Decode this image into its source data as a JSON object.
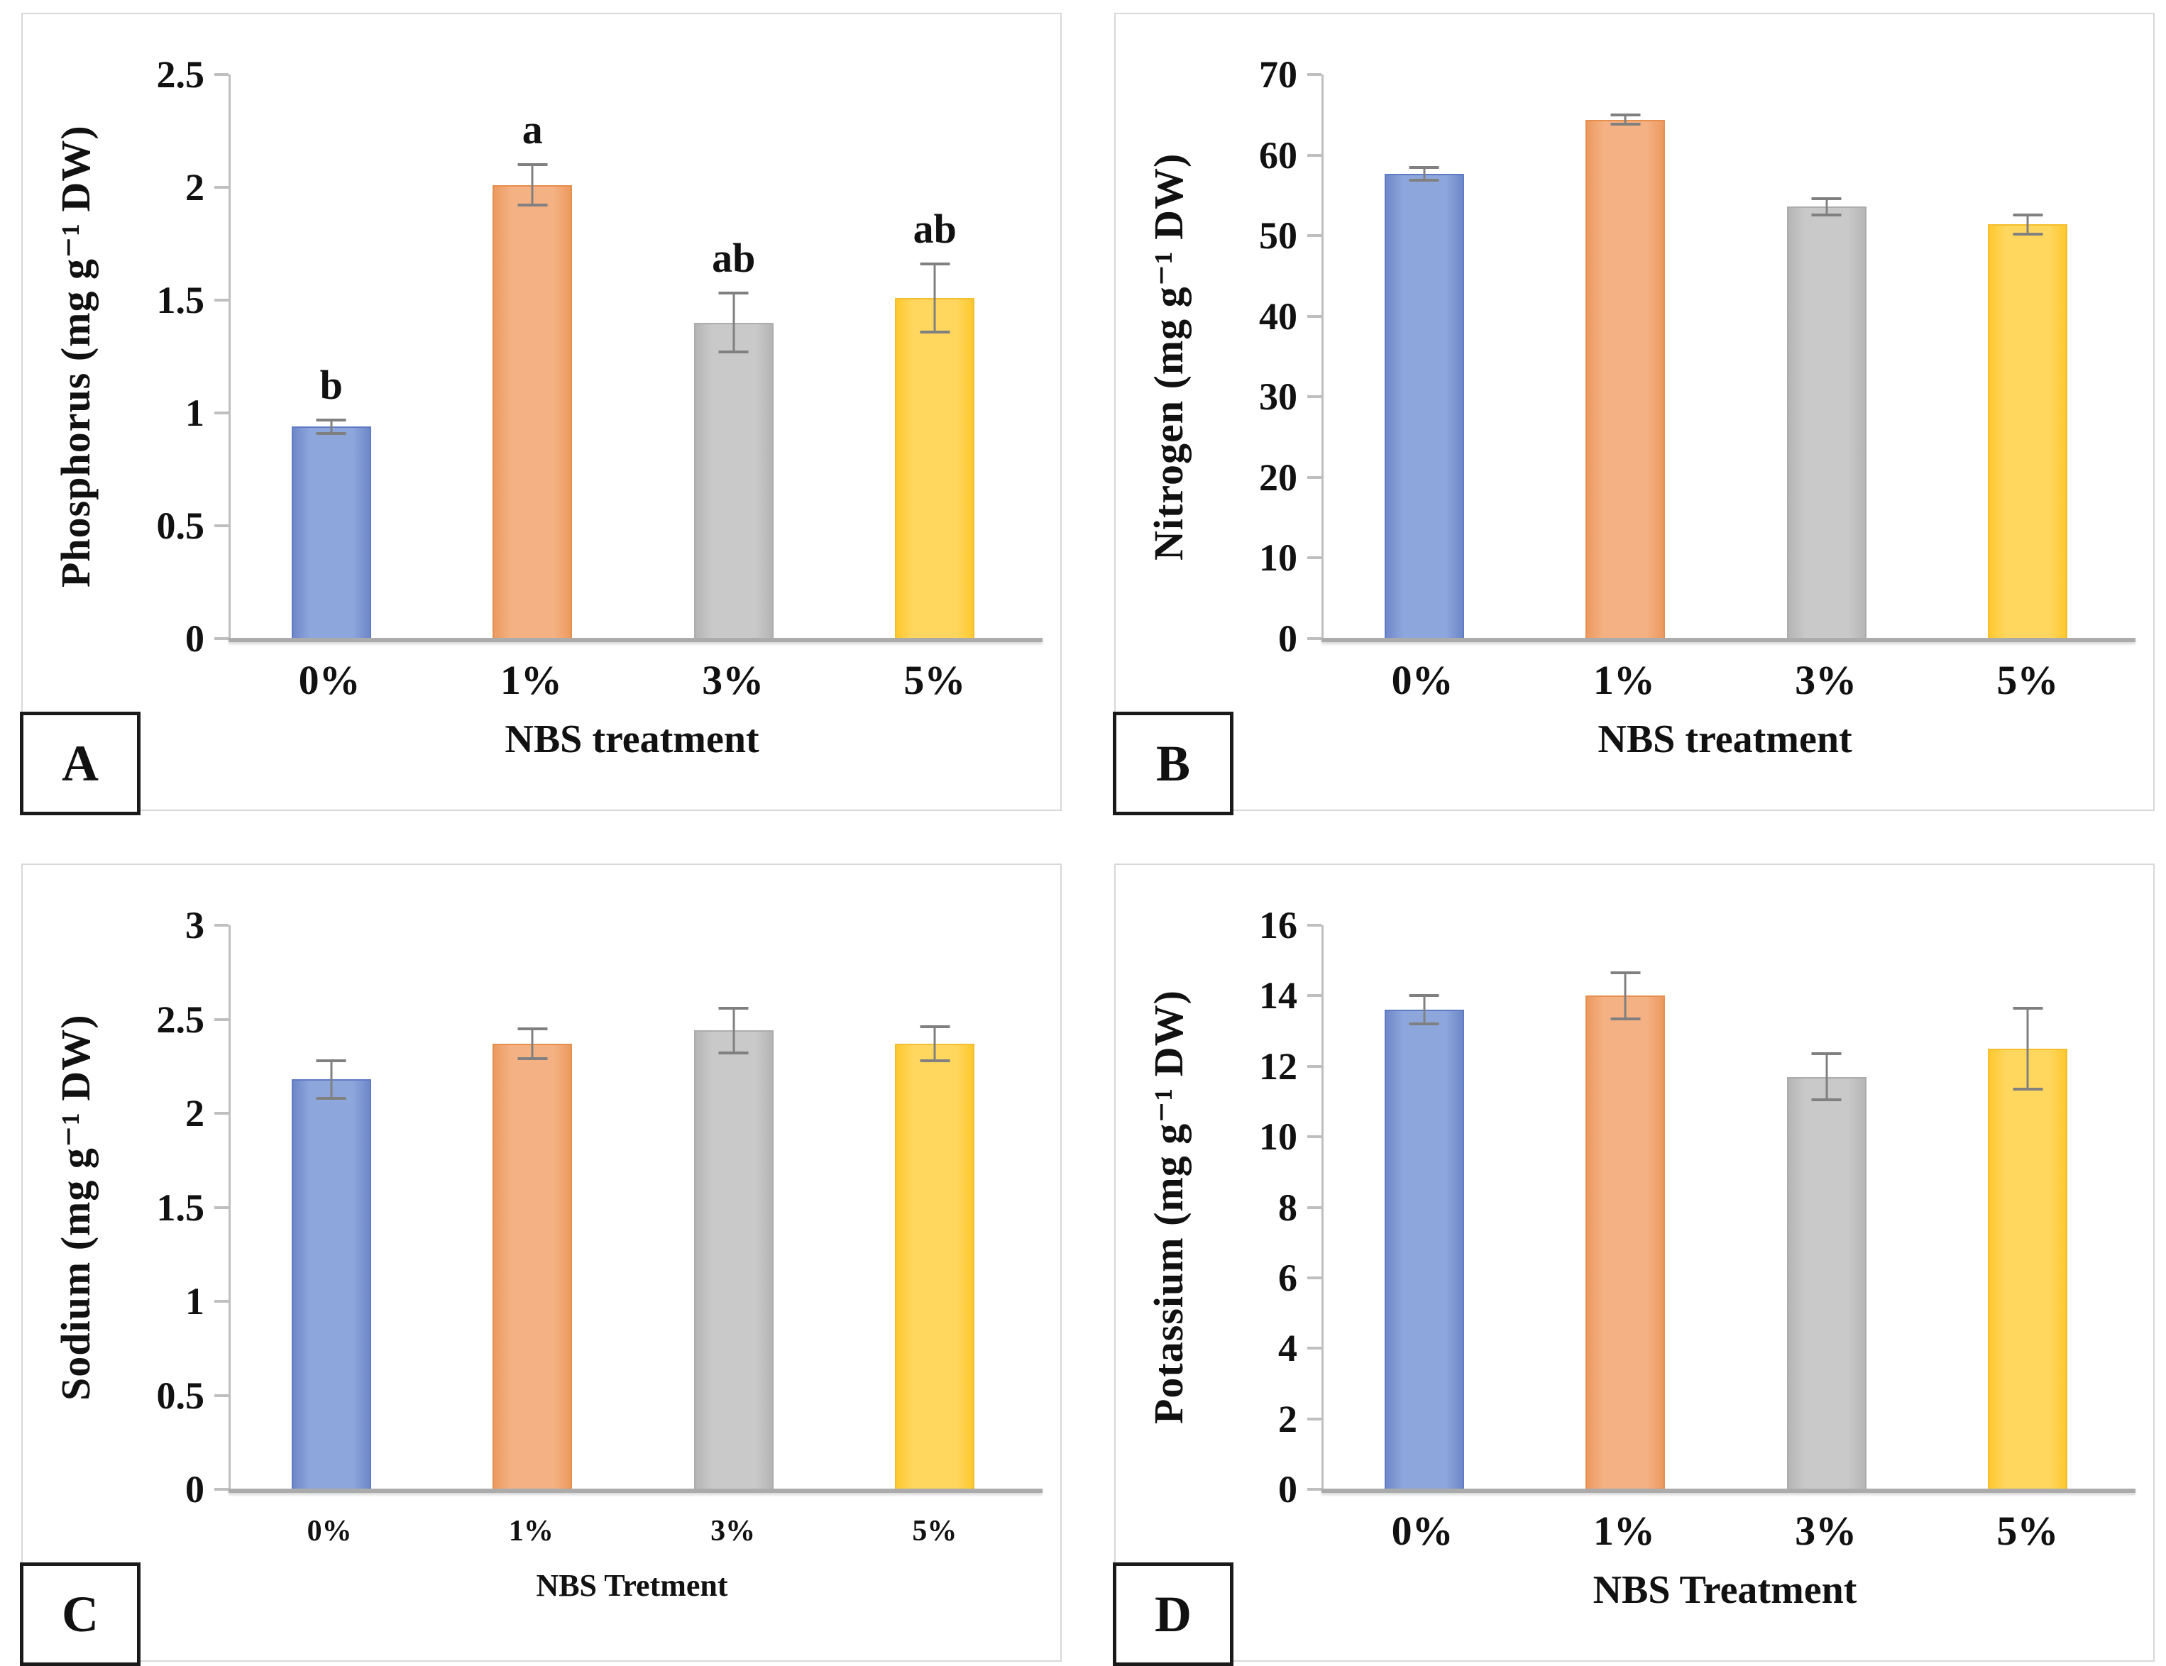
{
  "colors": {
    "bar_fill": [
      "#8DA6DC",
      "#F4B183",
      "#C9C9C9",
      "#FFD75E"
    ],
    "bar_edge": [
      "#6E88C9",
      "#EC9A5F",
      "#B5B5B5",
      "#FEC82F"
    ],
    "bar_border": [
      "#5E7BC4",
      "#E58E4D",
      "#ACACAC",
      "#F5BE2E"
    ],
    "error_bar": "#808080",
    "axis_line": "#BFBFBF",
    "baseline": "#ABABAB",
    "text": "#111111",
    "panel_border": "#D8D8D8",
    "label_box_border": "#1A1A1A"
  },
  "chart_data": [
    {
      "type": "bar",
      "panel_label": "A",
      "title": "",
      "xlabel": "NBS treatment",
      "ylabel": "Phosphorus (mg g⁻¹ DW)",
      "categories": [
        "0%",
        "1%",
        "3%",
        "5%"
      ],
      "values": [
        0.94,
        2.01,
        1.4,
        1.51
      ],
      "errors": [
        0.03,
        0.09,
        0.13,
        0.15
      ],
      "sig_letters": [
        "b",
        "a",
        "ab",
        "ab"
      ],
      "ylim": [
        0,
        2.5
      ],
      "yticks": [
        0,
        0.5,
        1,
        1.5,
        2,
        2.5
      ],
      "ytick_labels": [
        "0",
        "0.5",
        "1",
        "1.5",
        "2",
        "2.5"
      ],
      "grid": false,
      "legend": null
    },
    {
      "type": "bar",
      "panel_label": "B",
      "title": "",
      "xlabel": "NBS treatment",
      "ylabel": "Nitrogen (mg g⁻¹ DW)",
      "categories": [
        "0%",
        "1%",
        "3%",
        "5%"
      ],
      "values": [
        57.7,
        64.4,
        53.6,
        51.4
      ],
      "errors": [
        0.8,
        0.6,
        1.0,
        1.2
      ],
      "sig_letters": null,
      "ylim": [
        0,
        70
      ],
      "yticks": [
        0,
        10,
        20,
        30,
        40,
        50,
        60,
        70
      ],
      "ytick_labels": [
        "0",
        "10",
        "20",
        "30",
        "40",
        "50",
        "60",
        "70"
      ],
      "grid": false,
      "legend": null
    },
    {
      "type": "bar",
      "panel_label": "C",
      "title": "",
      "xlabel": "NBS Tretment",
      "ylabel": "Sodium (mg g⁻¹ DW)",
      "categories": [
        "0%",
        "1%",
        "3%",
        "5%"
      ],
      "values": [
        2.18,
        2.37,
        2.44,
        2.37
      ],
      "errors": [
        0.1,
        0.08,
        0.12,
        0.09
      ],
      "sig_letters": null,
      "ylim": [
        0,
        3
      ],
      "yticks": [
        0,
        0.5,
        1,
        1.5,
        2,
        2.5,
        3
      ],
      "ytick_labels": [
        "0",
        "0.5",
        "1",
        "1.5",
        "2",
        "2.5",
        "3"
      ],
      "grid": false,
      "legend": null
    },
    {
      "type": "bar",
      "panel_label": "D",
      "title": "",
      "xlabel": "NBS Treatment",
      "ylabel": "Potassium (mg g⁻¹ DW)",
      "categories": [
        "0%",
        "1%",
        "3%",
        "5%"
      ],
      "values": [
        13.6,
        14.0,
        11.7,
        12.5
      ],
      "errors": [
        0.4,
        0.65,
        0.65,
        1.15
      ],
      "sig_letters": null,
      "ylim": [
        0,
        16
      ],
      "yticks": [
        0,
        2,
        4,
        6,
        8,
        10,
        12,
        14,
        16
      ],
      "ytick_labels": [
        "0",
        "2",
        "4",
        "6",
        "8",
        "10",
        "12",
        "14",
        "16"
      ],
      "grid": false,
      "legend": null
    }
  ]
}
